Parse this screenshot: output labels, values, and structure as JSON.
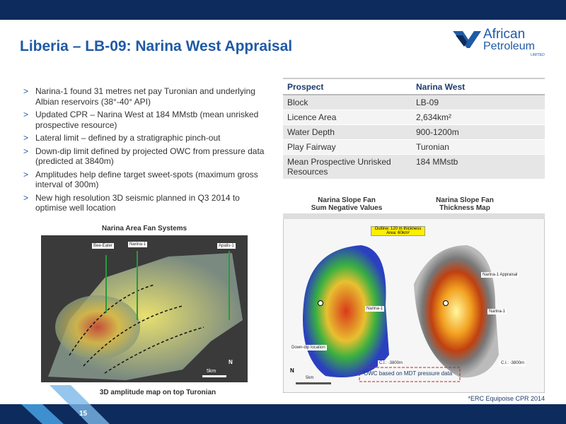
{
  "header": {
    "title": "Liberia – LB-09: Narina West Appraisal",
    "logo_line1": "African",
    "logo_line2": "Petroleum",
    "logo_line3": "LIMITED"
  },
  "bullets": [
    "Narina-1 found 31 metres net pay Turonian and underlying Albian reservoirs (38°-40° API)",
    "Updated CPR – Narina West at 184 MMstb (mean unrisked prospective resource)",
    "Lateral limit – defined by a stratigraphic pinch-out",
    "Down-dip limit defined by projected OWC from pressure data (predicted at 3840m)",
    "Amplitudes help define target sweet-spots (maximum gross interval of 300m)",
    "New high resolution 3D seismic planned in Q3 2014 to optimise well location"
  ],
  "bullet_marker": ">",
  "table": {
    "header": [
      "Prospect",
      "Narina West"
    ],
    "rows": [
      [
        "Block",
        "LB-09"
      ],
      [
        "Licence Area",
        "2,634km²"
      ],
      [
        "Water Depth",
        "900-1200m"
      ],
      [
        "Play Fairway",
        "Turonian"
      ],
      [
        "Mean Prospective Unrisked Resources",
        "184 MMstb"
      ]
    ]
  },
  "left_map": {
    "title": "Narina Area Fan Systems",
    "wells": [
      "Bee-Eater",
      "Narina-1",
      "Apalis-1"
    ],
    "scale": "5km",
    "north": "N",
    "caption": "3D amplitude map on top Turonian"
  },
  "right_maps": {
    "titles": [
      "Narina Slope Fan\nSum Negative Values",
      "Narina Slope Fan\nThickness Map"
    ],
    "outline_note": "Outline: 120 m thickness\nArea: 60km²",
    "labels": [
      "Narina-1",
      "Down-dip location",
      "Narina-1 Appraisal",
      "Narina-1",
      "C.I.: -3800m",
      "C.I.: -3800m"
    ],
    "owc_note": "OWC based on MDT pressure data",
    "scale": "5km",
    "north": "N",
    "footnote": "*ERC Equipoise CPR 2014"
  },
  "footer": {
    "page": "15"
  }
}
